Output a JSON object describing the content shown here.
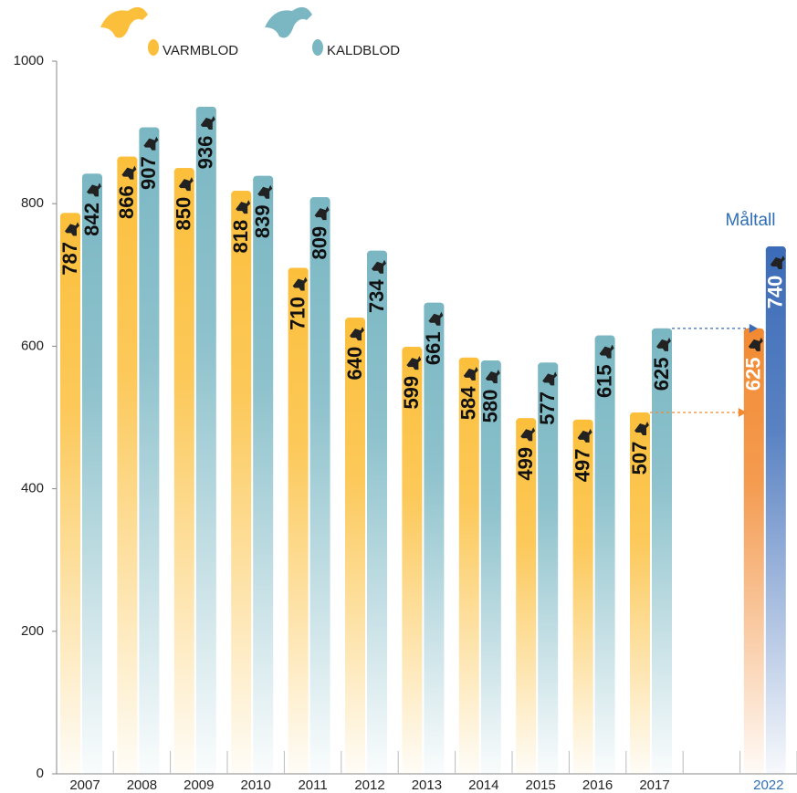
{
  "chart_data": {
    "type": "bar",
    "categories": [
      "2007",
      "2008",
      "2009",
      "2010",
      "2011",
      "2012",
      "2013",
      "2014",
      "2015",
      "2016",
      "2017",
      null,
      "2022"
    ],
    "series": [
      {
        "name": "VARMBLOD",
        "color": "#fbbf3c",
        "target_color": "#f28a32",
        "values": [
          787,
          866,
          850,
          818,
          710,
          640,
          599,
          584,
          499,
          497,
          507,
          null,
          625
        ]
      },
      {
        "name": "KALDBLOD",
        "color": "#7ab7c3",
        "target_color": "#3c6cb8",
        "values": [
          842,
          907,
          936,
          839,
          809,
          734,
          661,
          580,
          577,
          615,
          625,
          null,
          740
        ]
      }
    ],
    "annotation": "Måltall",
    "annotation_color": "#2f6fb6",
    "highlight_index": 12,
    "ylim": [
      0,
      1000
    ],
    "yticks": [
      0,
      200,
      400,
      600,
      800,
      1000
    ]
  }
}
